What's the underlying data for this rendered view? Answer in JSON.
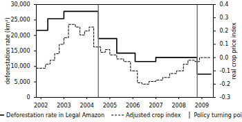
{
  "chart_data": {
    "type": "line",
    "ylabel": "deforestation rate (km²)",
    "y2label": "real crop price index",
    "xlim": [
      2001.8,
      2009.5
    ],
    "xticks": [
      2002,
      2003,
      2004,
      2005,
      2006,
      2007,
      2008,
      2009
    ],
    "ylim": [
      0,
      30000
    ],
    "yticks": [
      0,
      {
        "value": 5000,
        "label": "5,000"
      },
      {
        "value": 10000,
        "label": "10,000"
      },
      {
        "value": 15000,
        "label": "15,000"
      },
      {
        "value": 20000,
        "label": "20,000"
      },
      {
        "value": 25000,
        "label": "25,000"
      },
      {
        "value": 30000,
        "label": "30,000"
      }
    ],
    "y2lim": [
      -0.3,
      0.4
    ],
    "y2ticks": [
      -0.3,
      -0.2,
      -0.1,
      {
        "value": 0,
        "label": "0.0"
      },
      0.1,
      0.2,
      0.3,
      0.4
    ],
    "legend": "bottom",
    "series": [
      {
        "name": "Deforestation rate in Legal Amazon",
        "color": "#000000",
        "line_style": "solid",
        "x": [
          2001.8,
          2002.3,
          2003.0,
          2004.5,
          2005.3,
          2006.1,
          2007.0,
          2008.8,
          2009.4
        ],
        "values": [
          21650,
          25400,
          27800,
          19000,
          14300,
          11600,
          12900,
          7500,
          7500
        ]
      },
      {
        "name": "Adjusted crop index",
        "color": "#000000",
        "line_style": "dashed",
        "axis": "y2",
        "x": [
          2001.8,
          2002.2,
          2002.4,
          2002.6,
          2002.8,
          2003.0,
          2003.2,
          2003.5,
          2003.7,
          2003.9,
          2004.1,
          2004.3,
          2004.6,
          2004.8,
          2005.0,
          2005.3,
          2005.6,
          2005.9,
          2006.2,
          2006.4,
          2006.7,
          2007.0,
          2007.3,
          2007.6,
          2007.9,
          2008.2,
          2008.4,
          2008.7,
          2008.9,
          2009.4
        ],
        "values": [
          -0.08,
          -0.05,
          -0.02,
          0.03,
          0.1,
          0.15,
          0.25,
          0.23,
          0.17,
          0.2,
          0.23,
          0.08,
          0.04,
          0.06,
          0.02,
          -0.01,
          -0.03,
          -0.1,
          -0.19,
          -0.2,
          -0.18,
          -0.17,
          -0.15,
          -0.12,
          -0.1,
          -0.05,
          -0.02,
          -0.03,
          0.0,
          0.0
        ]
      },
      {
        "name": "Policy turning points",
        "type": "rule",
        "color": "#777777",
        "x": [
          2004.5,
          2008.8
        ]
      }
    ]
  }
}
